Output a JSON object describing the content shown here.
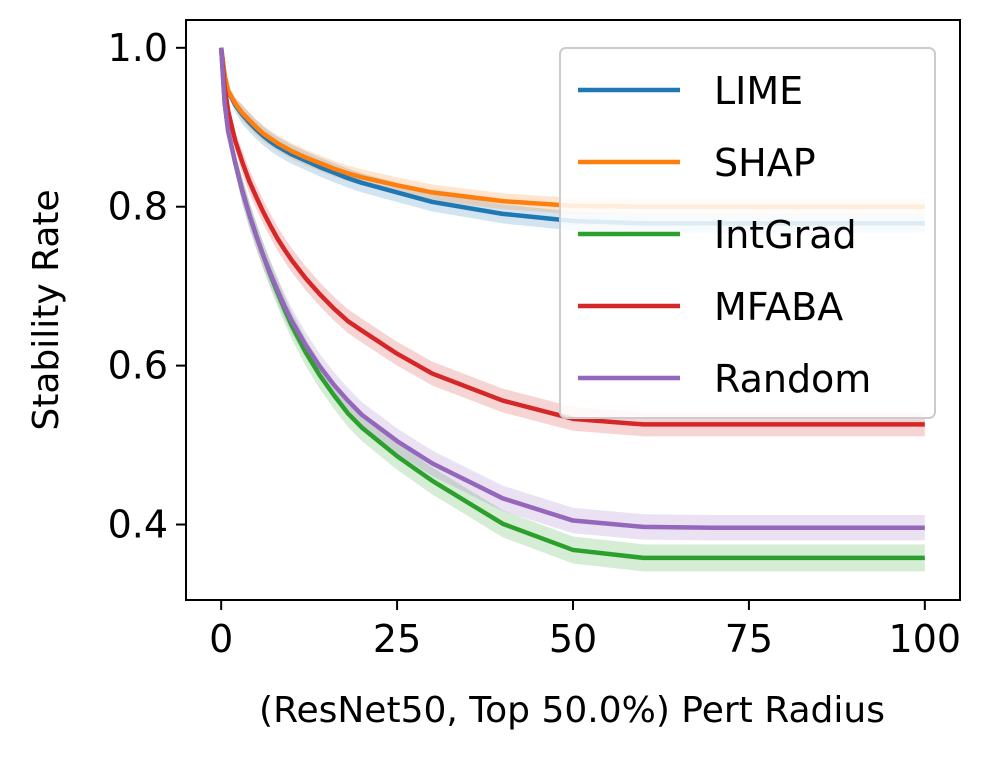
{
  "chart_data": {
    "type": "line",
    "title": "",
    "xlabel": "(ResNet50, Top 50.0%) Pert Radius",
    "ylabel": "Stability Rate",
    "xlim": [
      -5,
      105
    ],
    "ylim": [
      0.305,
      1.035
    ],
    "xticks": [
      0,
      25,
      50,
      75,
      100
    ],
    "xtick_labels": [
      "0",
      "25",
      "50",
      "75",
      "100"
    ],
    "yticks": [
      0.4,
      0.6,
      0.8,
      1.0
    ],
    "ytick_labels": [
      "0.4",
      "0.6",
      "0.8",
      "1.0"
    ],
    "grid": false,
    "legend_position": "top-right",
    "x": [
      0,
      0.5,
      1,
      2,
      3,
      4,
      5,
      6,
      7,
      8,
      9,
      10,
      12,
      14,
      16,
      18,
      20,
      25,
      30,
      40,
      50,
      60,
      70,
      80,
      90,
      100
    ],
    "series": [
      {
        "name": "LIME",
        "color": "#1f77b4",
        "values": [
          1.0,
          0.965,
          0.945,
          0.928,
          0.916,
          0.906,
          0.897,
          0.889,
          0.882,
          0.876,
          0.871,
          0.866,
          0.858,
          0.85,
          0.843,
          0.836,
          0.83,
          0.818,
          0.806,
          0.791,
          0.782,
          0.779,
          0.779,
          0.779,
          0.779,
          0.779
        ],
        "band": 0.012
      },
      {
        "name": "SHAP",
        "color": "#ff7f0e",
        "values": [
          1.0,
          0.965,
          0.946,
          0.93,
          0.918,
          0.909,
          0.9,
          0.892,
          0.886,
          0.88,
          0.875,
          0.87,
          0.862,
          0.855,
          0.848,
          0.842,
          0.837,
          0.827,
          0.818,
          0.807,
          0.801,
          0.8,
          0.8,
          0.8,
          0.8,
          0.8
        ],
        "band": 0.01
      },
      {
        "name": "IntGrad",
        "color": "#2ca02c",
        "values": [
          1.0,
          0.93,
          0.895,
          0.855,
          0.82,
          0.79,
          0.763,
          0.738,
          0.714,
          0.692,
          0.671,
          0.651,
          0.617,
          0.588,
          0.563,
          0.54,
          0.522,
          0.486,
          0.455,
          0.401,
          0.368,
          0.358,
          0.358,
          0.358,
          0.358,
          0.358
        ],
        "band": 0.017
      },
      {
        "name": "MFABA",
        "color": "#d62728",
        "values": [
          1.0,
          0.95,
          0.92,
          0.883,
          0.856,
          0.832,
          0.812,
          0.793,
          0.776,
          0.76,
          0.746,
          0.733,
          0.71,
          0.69,
          0.672,
          0.656,
          0.644,
          0.615,
          0.59,
          0.556,
          0.533,
          0.526,
          0.526,
          0.526,
          0.526,
          0.526
        ],
        "band": 0.015
      },
      {
        "name": "Random",
        "color": "#9467bd",
        "values": [
          1.0,
          0.93,
          0.895,
          0.855,
          0.82,
          0.79,
          0.763,
          0.738,
          0.716,
          0.695,
          0.675,
          0.657,
          0.626,
          0.599,
          0.576,
          0.556,
          0.538,
          0.505,
          0.477,
          0.433,
          0.405,
          0.397,
          0.396,
          0.396,
          0.396,
          0.396
        ],
        "band": 0.016
      }
    ]
  }
}
